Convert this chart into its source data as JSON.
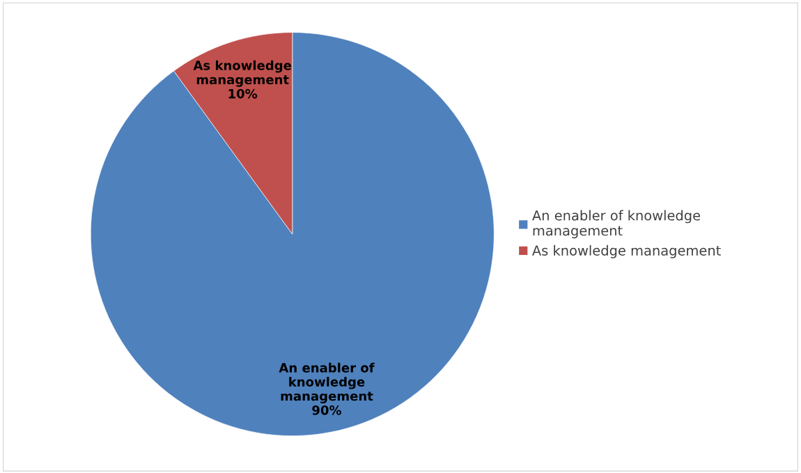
{
  "chart_data": {
    "type": "pie",
    "categories": [
      "An enabler of knowledge management",
      "As knowledge management"
    ],
    "values": [
      90,
      10
    ],
    "value_labels": [
      "90%",
      "10%"
    ],
    "colors": [
      "#4f81bd",
      "#c0504d"
    ],
    "legend": "right"
  }
}
